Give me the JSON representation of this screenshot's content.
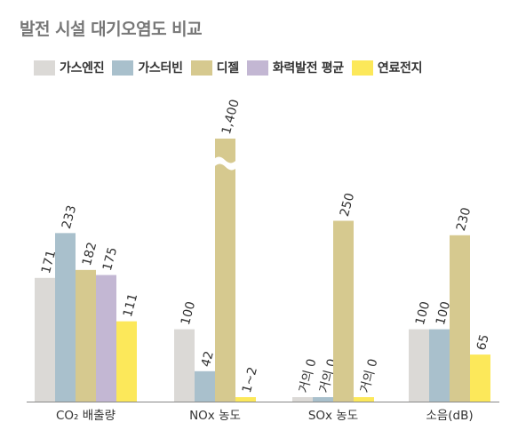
{
  "title": "발전 시설 대기오염도 비교",
  "colors": {
    "gas_engine": "#dbd9d6",
    "gas_turbine": "#a9c0cc",
    "diesel": "#d6c98f",
    "thermal": "#c3b7d3",
    "fuel_cell": "#fce85a"
  },
  "chart_data": {
    "type": "bar",
    "title": "발전 시설 대기오염도 비교",
    "legend_position": "top",
    "series": [
      {
        "name": "가스엔진",
        "values": [
          171,
          100,
          0,
          100
        ],
        "labels": [
          "171",
          "100",
          "거의 0",
          "100"
        ]
      },
      {
        "name": "가스터빈",
        "values": [
          233,
          42,
          0,
          100
        ],
        "labels": [
          "233",
          "42",
          "거의 0",
          "100"
        ]
      },
      {
        "name": "디젤",
        "values": [
          182,
          1400,
          250,
          230
        ],
        "labels": [
          "182",
          "1,400",
          "250",
          "230"
        ]
      },
      {
        "name": "화력발전 평균",
        "values": [
          175,
          null,
          null,
          null
        ],
        "labels": [
          "175",
          "",
          "",
          ""
        ]
      },
      {
        "name": "연료전지",
        "values": [
          111,
          1.5,
          0,
          65
        ],
        "labels": [
          "111",
          "1~2",
          "거의 0",
          "65"
        ]
      }
    ],
    "categories": [
      "CO₂ 배출량",
      "NOx 농도",
      "SOx 농도",
      "소음(dB)"
    ],
    "axis_break": {
      "category": "NOx 농도",
      "series": "디젤"
    }
  }
}
